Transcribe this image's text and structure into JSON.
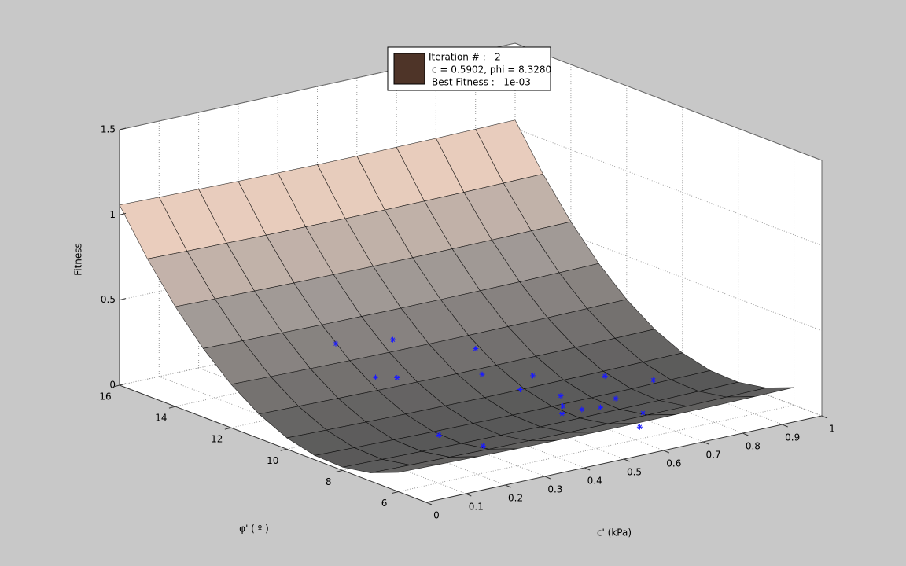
{
  "chart_data": {
    "type": "surface",
    "xlabel": "c' (kPa)",
    "ylabel": "φ' ( º )",
    "zlabel": "Fitness",
    "xlim": [
      0,
      1
    ],
    "xticks": [
      0,
      0.1,
      0.2,
      0.3,
      0.4,
      0.5,
      0.6,
      0.7,
      0.8,
      0.9,
      1
    ],
    "ylim": [
      5,
      16
    ],
    "yticks": [
      6,
      8,
      10,
      12,
      14,
      16
    ],
    "zlim": [
      0,
      1.5
    ],
    "zticks": [
      0,
      0.5,
      1,
      1.5
    ],
    "grid": true,
    "colormap": [
      "#575757",
      "#a8a09c",
      "#ffdcc8"
    ],
    "surface": {
      "x": [
        0,
        0.1,
        0.2,
        0.3,
        0.4,
        0.5,
        0.6,
        0.7,
        0.8,
        0.9,
        1
      ],
      "y": [
        6,
        7,
        8,
        9,
        10,
        11,
        12,
        13,
        14,
        15,
        16
      ],
      "z": [
        [
          0.113,
          0.108,
          0.104,
          0.1,
          0.098,
          0.096,
          0.096,
          0.097,
          0.098,
          0.101,
          0.104
        ],
        [
          0.048,
          0.043,
          0.039,
          0.035,
          0.033,
          0.031,
          0.031,
          0.032,
          0.033,
          0.036,
          0.039
        ],
        [
          0.019,
          0.014,
          0.01,
          0.006,
          0.004,
          0.002,
          0.002,
          0.003,
          0.004,
          0.007,
          0.01
        ],
        [
          0.025,
          0.02,
          0.016,
          0.012,
          0.01,
          0.008,
          0.008,
          0.009,
          0.01,
          0.013,
          0.016
        ],
        [
          0.066,
          0.061,
          0.057,
          0.053,
          0.051,
          0.049,
          0.049,
          0.05,
          0.051,
          0.054,
          0.057
        ],
        [
          0.143,
          0.138,
          0.134,
          0.13,
          0.128,
          0.126,
          0.126,
          0.127,
          0.128,
          0.131,
          0.134
        ],
        [
          0.255,
          0.25,
          0.246,
          0.242,
          0.24,
          0.238,
          0.238,
          0.239,
          0.24,
          0.243,
          0.246
        ],
        [
          0.403,
          0.398,
          0.394,
          0.39,
          0.388,
          0.386,
          0.386,
          0.387,
          0.388,
          0.391,
          0.394
        ],
        [
          0.586,
          0.581,
          0.577,
          0.573,
          0.571,
          0.569,
          0.569,
          0.57,
          0.571,
          0.574,
          0.577
        ],
        [
          0.804,
          0.799,
          0.795,
          0.791,
          0.789,
          0.787,
          0.787,
          0.788,
          0.789,
          0.792,
          0.795
        ],
        [
          1.058,
          1.053,
          1.049,
          1.045,
          1.043,
          1.041,
          1.041,
          1.042,
          1.043,
          1.046,
          1.049
        ]
      ]
    },
    "points": {
      "color": "#1a1aff",
      "x": [
        0.3,
        0.43,
        0.33,
        0.37,
        0.3,
        0.32,
        0.59,
        0.55,
        0.59,
        0.65,
        0.65,
        0.62,
        0.59,
        0.64,
        0.68,
        0.79,
        0.74,
        0.61,
        0.71,
        0.87
      ],
      "y": [
        12.5,
        12.3,
        11.5,
        11.3,
        8.8,
        7.5,
        11.6,
        10.8,
        10,
        10.4,
        9.4,
        8.9,
        8.5,
        8.5,
        8.4,
        9.8,
        8.7,
        6,
        7.3,
        9.2
      ],
      "z": [
        0.31,
        0.28,
        0.16,
        0.15,
        0.005,
        0.012,
        0.19,
        0.11,
        0.05,
        0.076,
        0.02,
        0.006,
        0.001,
        0.001,
        0,
        0.04,
        0.002,
        0.07,
        0.02,
        0.013
      ]
    },
    "annotation": {
      "color": "#4e3428",
      "lines": [
        "Iteration # :   2",
        "c = 0.5902, phi = 8.3280",
        "Best Fitness :   1e-03"
      ]
    }
  }
}
